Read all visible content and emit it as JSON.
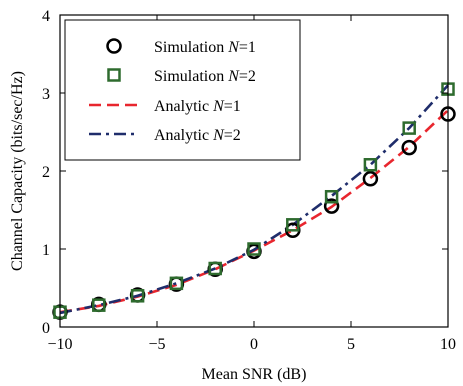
{
  "chart_data": {
    "type": "scatter",
    "xlabel": "Mean SNR (dB)",
    "ylabel": "Channel Capacity (bits/sec/Hz)",
    "xlim": [
      -10,
      10
    ],
    "ylim": [
      0,
      4
    ],
    "x_ticks": [
      "−10",
      "−5",
      "0",
      "5",
      "10"
    ],
    "x_tick_values": [
      -10,
      -5,
      0,
      5,
      10
    ],
    "y_ticks": [
      "0",
      "1",
      "2",
      "3",
      "4"
    ],
    "y_tick_values": [
      0,
      1,
      2,
      3,
      4
    ],
    "grid": false,
    "legend_position": "top-left",
    "x": [
      -10,
      -8,
      -6,
      -4,
      -2,
      0,
      2,
      4,
      6,
      8,
      10
    ],
    "series": [
      {
        "name": "Simulation N=1",
        "label_prefix": "Simulation ",
        "label_var": "N",
        "label_suffix": "=1",
        "style": "circle-marker",
        "color": "#000000",
        "values": [
          0.19,
          0.29,
          0.41,
          0.55,
          0.74,
          0.97,
          1.24,
          1.55,
          1.9,
          2.3,
          2.73
        ]
      },
      {
        "name": "Simulation N=2",
        "label_prefix": "Simulation ",
        "label_var": "N",
        "label_suffix": "=2",
        "style": "square-marker",
        "color": "#2e6b2e",
        "values": [
          0.19,
          0.28,
          0.4,
          0.56,
          0.75,
          1.0,
          1.31,
          1.67,
          2.08,
          2.55,
          3.05
        ]
      },
      {
        "name": "Analytic N=1",
        "label_prefix": "Analytic ",
        "label_var": "N",
        "label_suffix": "=1",
        "style": "dashed-line",
        "color": "#e8262e",
        "values": [
          0.19,
          0.27,
          0.39,
          0.54,
          0.74,
          0.98,
          1.24,
          1.54,
          1.91,
          2.31,
          2.78
        ]
      },
      {
        "name": "Analytic N=2",
        "label_prefix": "Analytic ",
        "label_var": "N",
        "label_suffix": "=2",
        "style": "dashdot-line",
        "color": "#1f2d6b",
        "values": [
          0.18,
          0.28,
          0.4,
          0.56,
          0.75,
          0.99,
          1.31,
          1.68,
          2.08,
          2.55,
          3.1
        ]
      }
    ]
  }
}
